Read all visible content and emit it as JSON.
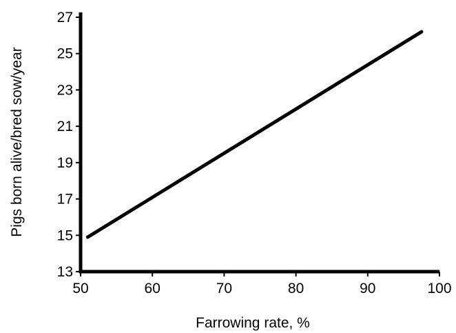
{
  "chart_data": {
    "type": "line",
    "title": "",
    "xlabel": "Farrowing rate, %",
    "ylabel": "Pigs born alive/bred sow/year",
    "xlim": [
      50,
      100
    ],
    "ylim": [
      13,
      27
    ],
    "x_ticks": [
      "50",
      "60",
      "70",
      "80",
      "90",
      "100"
    ],
    "y_ticks": [
      "13",
      "15",
      "17",
      "19",
      "21",
      "23",
      "25",
      "27"
    ],
    "grid": false,
    "legend": "none",
    "series": [
      {
        "x": [
          51,
          97.5
        ],
        "y": [
          14.9,
          26.2
        ],
        "color": "#000000"
      }
    ]
  }
}
